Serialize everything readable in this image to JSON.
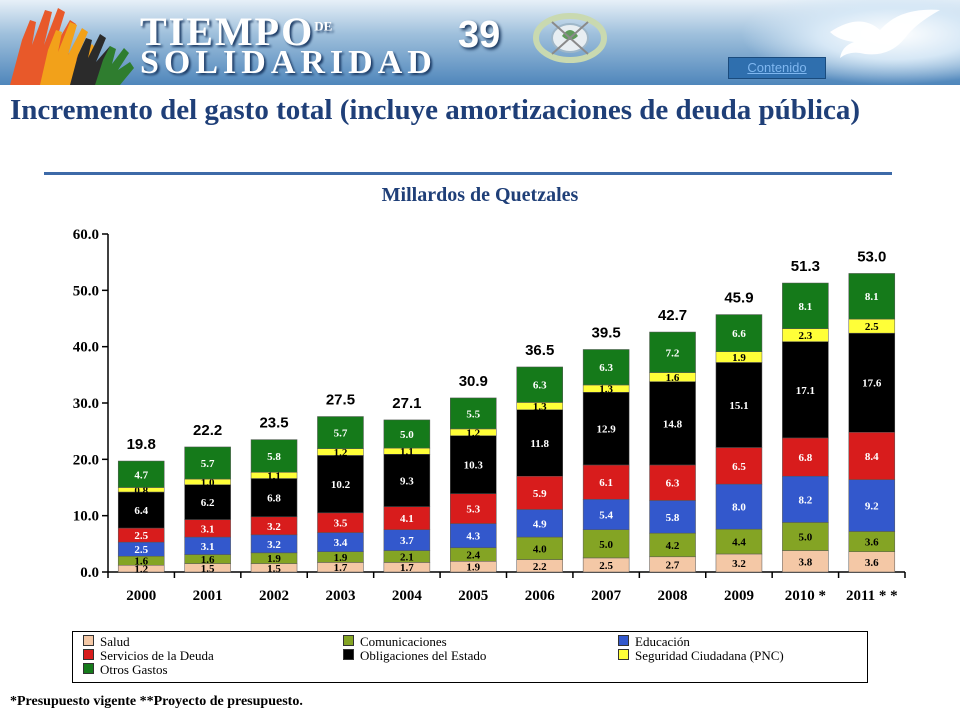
{
  "header": {
    "logo_word1": "TIEMPO",
    "logo_word_de": "DE",
    "logo_word2": "SOLIDARIDAD",
    "slide_number": "39",
    "contenido_link": "Contenido"
  },
  "title": "Incremento del gasto total (incluye amortizaciones de deuda pública)",
  "footnote": "*Presupuesto vigente    **Proyecto de presupuesto.",
  "colors": {
    "salud": "#f4c8a6",
    "comunicaciones": "#84a424",
    "educacion": "#3358cc",
    "deuda": "#d81c1c",
    "obligaciones": "#000000",
    "seguridad": "#ffff38",
    "otros": "#157a1a",
    "title": "#1f3f78"
  },
  "chart_data": {
    "type": "bar",
    "stacked": true,
    "title": "Millardos de Quetzales",
    "ylim": [
      0,
      60
    ],
    "yticks": [
      "0.0",
      "10.0",
      "20.0",
      "30.0",
      "40.0",
      "50.0",
      "60.0"
    ],
    "categories": [
      "2000",
      "2001",
      "2002",
      "2003",
      "2004",
      "2005",
      "2006",
      "2007",
      "2008",
      "2009",
      "2010 *",
      "2011 * *"
    ],
    "totals": [
      "19.8",
      "22.2",
      "23.5",
      "27.5",
      "27.1",
      "30.9",
      "36.5",
      "39.5",
      "42.7",
      "45.9",
      "51.3",
      "53.0"
    ],
    "series": [
      {
        "name": "Salud",
        "color_key": "salud",
        "values": [
          1.2,
          1.5,
          1.5,
          1.7,
          1.7,
          1.9,
          2.2,
          2.5,
          2.7,
          3.2,
          3.8,
          3.6
        ]
      },
      {
        "name": "Comunicaciones",
        "color_key": "comunicaciones",
        "values": [
          1.6,
          1.6,
          1.9,
          1.9,
          2.1,
          2.4,
          4.0,
          5.0,
          4.2,
          4.4,
          5.0,
          3.6
        ]
      },
      {
        "name": "Educación",
        "color_key": "educacion",
        "values": [
          2.5,
          3.1,
          3.2,
          3.4,
          3.7,
          4.3,
          4.9,
          5.4,
          5.8,
          8.0,
          8.2,
          9.2
        ]
      },
      {
        "name": "Servicios de la Deuda",
        "color_key": "deuda",
        "values": [
          2.5,
          3.1,
          3.2,
          3.5,
          4.1,
          5.3,
          5.9,
          6.1,
          6.3,
          6.5,
          6.8,
          8.4
        ]
      },
      {
        "name": "Obligaciones del Estado",
        "color_key": "obligaciones",
        "values": [
          6.4,
          6.2,
          6.8,
          10.2,
          9.3,
          10.3,
          11.8,
          12.9,
          14.8,
          15.1,
          17.1,
          17.6
        ]
      },
      {
        "name": "Seguridad Ciudadana (PNC)",
        "color_key": "seguridad",
        "values": [
          0.8,
          1.0,
          1.1,
          1.2,
          1.1,
          1.2,
          1.3,
          1.3,
          1.6,
          1.9,
          2.3,
          2.5
        ]
      },
      {
        "name": "Otros Gastos",
        "color_key": "otros",
        "values": [
          4.7,
          5.7,
          5.8,
          5.7,
          5.0,
          5.5,
          6.3,
          6.3,
          7.2,
          6.6,
          8.1,
          8.1
        ]
      }
    ],
    "legend_position": "bottom"
  }
}
